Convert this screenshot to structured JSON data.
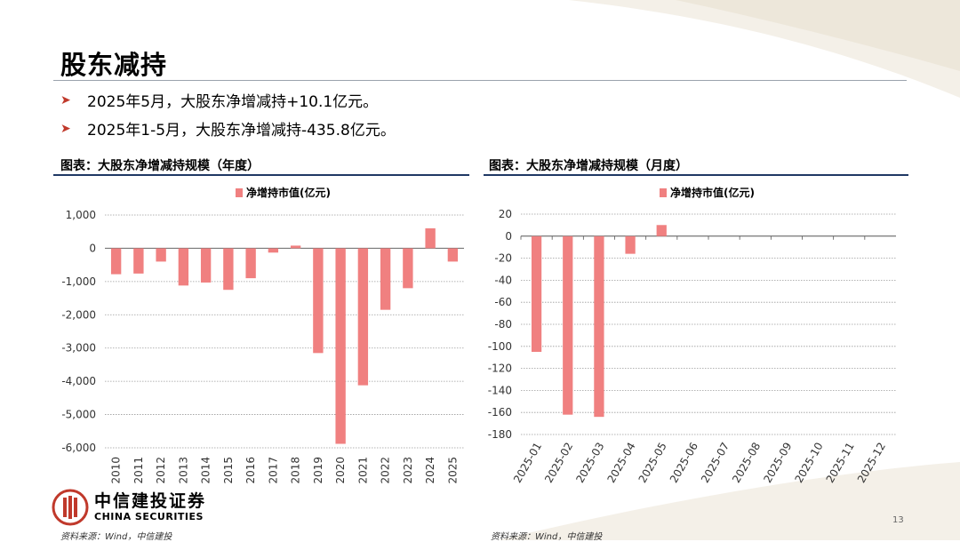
{
  "slide": {
    "title": "股东减持",
    "bullets": [
      "2025年5月，大股东净增减持+10.1亿元。",
      "2025年1-5月，大股东净增减持-435.8亿元。"
    ],
    "page_number": "13",
    "logo": {
      "cn": "中信建投证券",
      "en": "CHINA SECURITIES"
    },
    "sources": [
      "资料来源：Wind，中信建投",
      "资料来源：Wind，中信建投"
    ],
    "colors": {
      "bar": "#f08080",
      "rule": "#1f3864",
      "grid": "#999999",
      "accent": "#c0392b"
    }
  },
  "chart_data": [
    {
      "type": "bar",
      "title": "图表：大股东净增减持规模（年度）",
      "legend": "净增持市值(亿元)",
      "legend_position": "top",
      "categories": [
        "2010",
        "2011",
        "2012",
        "2013",
        "2014",
        "2015",
        "2016",
        "2017",
        "2018",
        "2019",
        "2020",
        "2021",
        "2022",
        "2023",
        "2024",
        "2025"
      ],
      "values": [
        -780,
        -760,
        -400,
        -1120,
        -1030,
        -1250,
        -900,
        -130,
        80,
        -3150,
        -5880,
        -4120,
        -1850,
        -1200,
        600,
        -400
      ],
      "ylim": [
        -6000,
        1000
      ],
      "yticks": [
        1000,
        0,
        -1000,
        -2000,
        -3000,
        -4000,
        -5000,
        -6000
      ],
      "ytick_labels": [
        "1,000",
        "0",
        "-1,000",
        "-2,000",
        "-3,000",
        "-4,000",
        "-5,000",
        "-6,000"
      ],
      "grid": true
    },
    {
      "type": "bar",
      "title": "图表：大股东净增减持规模（月度）",
      "legend": "净增持市值(亿元)",
      "legend_position": "top",
      "categories": [
        "2025-01",
        "2025-02",
        "2025-03",
        "2025-04",
        "2025-05",
        "2025-06",
        "2025-07",
        "2025-08",
        "2025-09",
        "2025-10",
        "2025-11",
        "2025-12"
      ],
      "values": [
        -105,
        -162,
        -164,
        -16,
        10.1,
        null,
        null,
        null,
        null,
        null,
        null,
        null
      ],
      "ylim": [
        -180,
        20
      ],
      "yticks": [
        20,
        0,
        -20,
        -40,
        -60,
        -80,
        -100,
        -120,
        -140,
        -160,
        -180
      ],
      "ytick_labels": [
        "20",
        "0",
        "-20",
        "-40",
        "-60",
        "-80",
        "-100",
        "-120",
        "-140",
        "-160",
        "-180"
      ],
      "grid": true
    }
  ]
}
